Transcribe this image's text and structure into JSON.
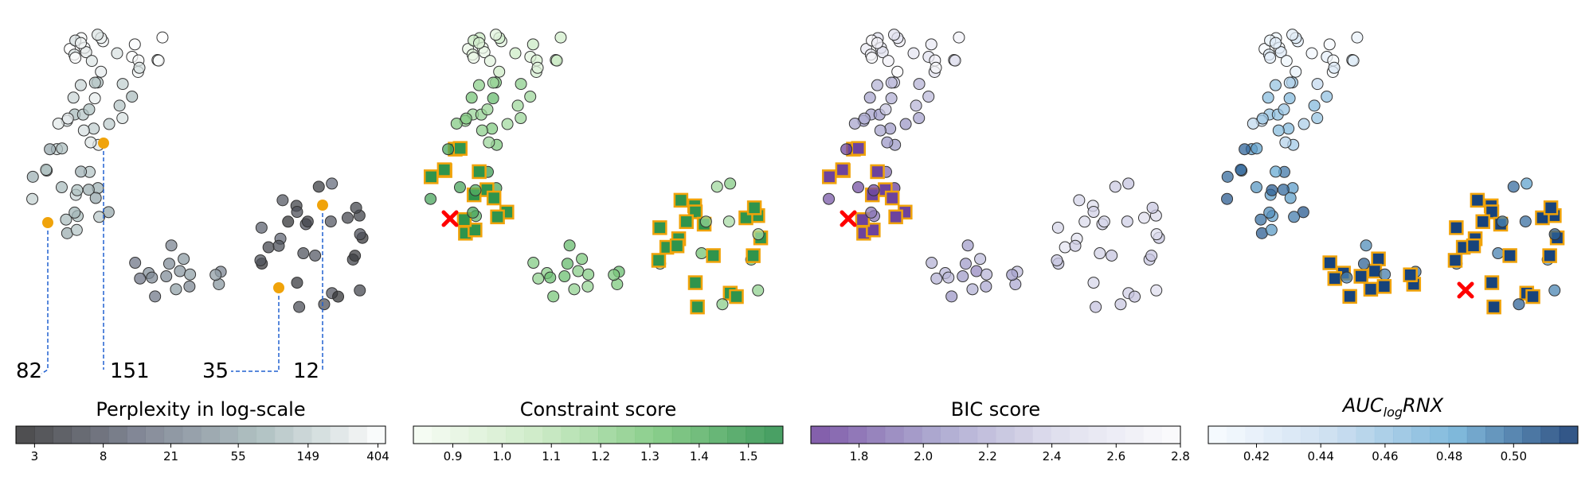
{
  "chart_data": [
    {
      "type": "scatter",
      "title": "",
      "colorbar": {
        "label": "Perplexity in log-scale",
        "label_italic": false,
        "scale": "log",
        "range": [
          2.3,
          450
        ],
        "ticks": [
          3,
          8,
          21,
          55,
          149,
          404
        ],
        "tick_labels": [
          "3",
          "8",
          "21",
          "55",
          "149",
          "404"
        ],
        "colors": [
          "#2b2b2b",
          "#6e7486",
          "#a4b8b9",
          "#ffffff"
        ],
        "steps": 20
      },
      "annotations": [
        {
          "text": "82",
          "value": 82
        },
        {
          "text": "151",
          "value": 151
        },
        {
          "text": "35",
          "value": 35
        },
        {
          "text": "12",
          "value": 12
        }
      ],
      "highlight_color": "#f0a30a"
    },
    {
      "type": "scatter",
      "title": "",
      "colorbar": {
        "label": "Constraint score",
        "label_italic": false,
        "scale": "linear",
        "range": [
          0.82,
          1.57
        ],
        "ticks": [
          0.9,
          1.0,
          1.1,
          1.2,
          1.3,
          1.4,
          1.5
        ],
        "tick_labels": [
          "0.9",
          "1.0",
          "1.1",
          "1.2",
          "1.3",
          "1.4",
          "1.5"
        ],
        "colors": [
          "#f7fcf5",
          "#c7e9c0",
          "#74c476",
          "#238b45"
        ],
        "steps": 20
      },
      "best_marker": "red-x",
      "selected_marker": "orange-square"
    },
    {
      "type": "scatter",
      "title": "",
      "colorbar": {
        "label": "BIC score",
        "label_italic": false,
        "scale": "linear",
        "range": [
          1.65,
          2.8
        ],
        "ticks": [
          1.8,
          2.0,
          2.2,
          2.4,
          2.6,
          2.8
        ],
        "tick_labels": [
          "1.8",
          "2.0",
          "2.2",
          "2.4",
          "2.6",
          "2.8"
        ],
        "colors": [
          "#6a3d9a",
          "#9e9ac8",
          "#dadaeb",
          "#fcfbfd"
        ],
        "steps": 20
      },
      "best_marker": "red-x",
      "selected_marker": "orange-square"
    },
    {
      "type": "scatter",
      "title": "",
      "colorbar": {
        "label": "AUC",
        "label_sub": "log",
        "label_tail": "RNX",
        "label_italic": true,
        "scale": "linear",
        "range": [
          0.405,
          0.52
        ],
        "ticks": [
          0.42,
          0.44,
          0.46,
          0.48,
          0.5
        ],
        "tick_labels": [
          "0.42",
          "0.44",
          "0.46",
          "0.48",
          "0.50"
        ],
        "colors": [
          "#f7fbff",
          "#c6dbef",
          "#6baed6",
          "#08306b"
        ],
        "steps": 20
      },
      "best_marker": "red-x",
      "selected_marker": "orange-square"
    }
  ]
}
